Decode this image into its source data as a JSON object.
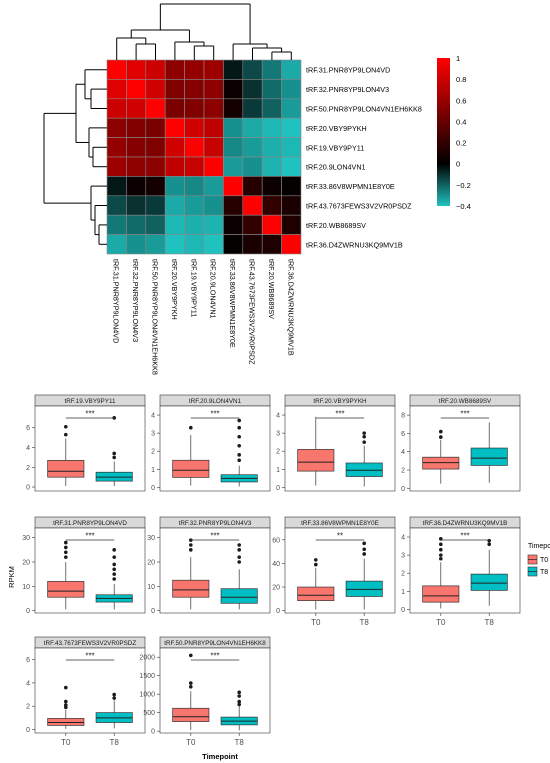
{
  "heatmap": {
    "rows": [
      "tRF.31.PNR8YP9LON4VD",
      "tRF.32.PNR8YP9LON4V3",
      "tRF.50.PNR8YP9LON4VN1EH6KK8",
      "tRF.20.VBY9PYKH",
      "tRF.19.VBY9PY11",
      "tRF.20.9LON4VN1",
      "tRF.33.86V8WPMN1E8Y0E",
      "tRF.43.7673FEWS3V2VR0PSDZ",
      "tRF.20.WB8689SV",
      "tRF.36.D4ZWRNU3KQ9MV1B"
    ],
    "cols": [
      "tRF.31.PNR8YP9LON4VD",
      "tRF.32.PNR8YP9LON4V3",
      "tRF.50.PNR8YP9LON4VN1EH6KK8",
      "tRF.20.VBY9PYKH",
      "tRF.19.VBY9PY11",
      "tRF.20.9LON4VN1",
      "tRF.33.86V8WPMN1E8Y0E",
      "tRF.43.7673FEWS3V2VR0PSDZ",
      "tRF.20.WB8689SV",
      "tRF.36.D4ZWRNU3KQ9MV1B"
    ],
    "legend_ticks": [
      "1",
      "0.8",
      "0.6",
      "0.4",
      "0.2",
      "0",
      "−0.2",
      "−0.4"
    ],
    "colors": {
      "high": "#ff0000",
      "mid": "#000000",
      "low": "#1fc2bf",
      "grid": "#8a8a8a"
    }
  },
  "chart_data": [
    {
      "type": "heatmap",
      "value_range": [
        -0.4,
        1
      ],
      "rows": [
        "tRF.31.PNR8YP9LON4VD",
        "tRF.32.PNR8YP9LON4V3",
        "tRF.50.PNR8YP9LON4VN1EH6KK8",
        "tRF.20.VBY9PYKH",
        "tRF.19.VBY9PY11",
        "tRF.20.9LON4VN1",
        "tRF.33.86V8WPMN1E8Y0E",
        "tRF.43.7673FEWS3V2VR0PSDZ",
        "tRF.20.WB8689SV",
        "tRF.36.D4ZWRNU3KQ9MV1B"
      ],
      "values": [
        [
          1.0,
          0.88,
          0.8,
          0.55,
          0.58,
          0.62,
          -0.05,
          -0.15,
          -0.25,
          -0.35
        ],
        [
          0.88,
          1.0,
          0.82,
          0.5,
          0.52,
          0.56,
          0.05,
          -0.1,
          -0.22,
          -0.3
        ],
        [
          0.8,
          0.82,
          1.0,
          0.48,
          0.5,
          0.55,
          0.08,
          -0.12,
          -0.2,
          -0.32
        ],
        [
          0.55,
          0.5,
          0.48,
          1.0,
          0.82,
          0.75,
          -0.3,
          -0.35,
          -0.38,
          -0.4
        ],
        [
          0.58,
          0.52,
          0.5,
          0.82,
          1.0,
          0.78,
          -0.28,
          -0.32,
          -0.36,
          -0.38
        ],
        [
          0.62,
          0.56,
          0.55,
          0.75,
          0.78,
          1.0,
          -0.32,
          -0.3,
          -0.37,
          -0.4
        ],
        [
          -0.05,
          0.05,
          0.08,
          -0.3,
          -0.28,
          -0.32,
          1.0,
          0.15,
          0.05,
          0.02
        ],
        [
          -0.15,
          -0.1,
          -0.12,
          -0.35,
          -0.32,
          -0.3,
          0.15,
          1.0,
          0.2,
          0.1
        ],
        [
          -0.25,
          -0.22,
          -0.2,
          -0.38,
          -0.36,
          -0.37,
          0.05,
          0.2,
          1.0,
          0.12
        ],
        [
          -0.35,
          -0.3,
          -0.32,
          -0.4,
          -0.38,
          -0.4,
          0.02,
          0.1,
          0.12,
          1.0
        ]
      ]
    },
    {
      "type": "box",
      "xlabel": "Timepoint",
      "ylabel": "RPKM",
      "categories": [
        "T0",
        "T8"
      ],
      "legend": {
        "title": "Timepoint",
        "entries": [
          "T0",
          "T8"
        ],
        "colors": [
          "#f8766d",
          "#00bfc4"
        ],
        "placement": "right"
      },
      "panels": [
        {
          "title": "tRF.19.VBY9PY11",
          "sig": "***",
          "yticks": [
            0,
            2,
            4,
            6
          ],
          "ylim": [
            -0.4,
            8.2
          ],
          "boxes": [
            {
              "group": "T0",
              "min": 0.1,
              "q1": 1.0,
              "median": 1.6,
              "q3": 2.7,
              "max": 4.9,
              "outliers": [
                5.3,
                6.1
              ]
            },
            {
              "group": "T8",
              "min": 0.1,
              "q1": 0.6,
              "median": 1.0,
              "q3": 1.5,
              "max": 2.6,
              "outliers": [
                3.0,
                3.4,
                7.0
              ]
            }
          ]
        },
        {
          "title": "tRF.20.9LON4VN1",
          "sig": "***",
          "yticks": [
            0,
            1,
            2,
            3,
            4
          ],
          "ylim": [
            -0.2,
            4.5
          ],
          "boxes": [
            {
              "group": "T0",
              "min": 0.1,
              "q1": 0.55,
              "median": 0.95,
              "q3": 1.5,
              "max": 2.9,
              "outliers": [
                3.3
              ]
            },
            {
              "group": "T8",
              "min": 0.05,
              "q1": 0.3,
              "median": 0.5,
              "q3": 0.7,
              "max": 1.2,
              "outliers": [
                1.5,
                1.8,
                2.3,
                2.8,
                3.3,
                3.7
              ]
            }
          ]
        },
        {
          "title": "tRF.20.VBY9PYKH",
          "sig": "***",
          "yticks": [
            0,
            1,
            2,
            3,
            4
          ],
          "ylim": [
            -0.2,
            4.5
          ],
          "boxes": [
            {
              "group": "T0",
              "min": 0.1,
              "q1": 0.9,
              "median": 1.4,
              "q3": 2.1,
              "max": 3.9,
              "outliers": []
            },
            {
              "group": "T8",
              "min": 0.05,
              "q1": 0.6,
              "median": 0.95,
              "q3": 1.35,
              "max": 2.3,
              "outliers": [
                2.5,
                2.8,
                3.0
              ]
            }
          ]
        },
        {
          "title": "tRF.20.WB8689SV",
          "sig": "***",
          "yticks": [
            0,
            2,
            4,
            6,
            8
          ],
          "ylim": [
            -0.3,
            9
          ],
          "boxes": [
            {
              "group": "T0",
              "min": 0.5,
              "q1": 2.1,
              "median": 2.8,
              "q3": 3.4,
              "max": 5.3,
              "outliers": [
                5.6,
                6.2
              ]
            },
            {
              "group": "T8",
              "min": 0.6,
              "q1": 2.5,
              "median": 3.3,
              "q3": 4.4,
              "max": 7.2,
              "outliers": []
            }
          ]
        },
        {
          "title": "tRF.31.PNR8YP9LON4VD",
          "sig": "***",
          "yticks": [
            0,
            10,
            20,
            30
          ],
          "ylim": [
            -1,
            34
          ],
          "boxes": [
            {
              "group": "T0",
              "min": 0.5,
              "q1": 5.5,
              "median": 8.0,
              "q3": 12.0,
              "max": 20.0,
              "outliers": [
                22,
                24,
                26,
                28
              ]
            },
            {
              "group": "T8",
              "min": 0.5,
              "q1": 3.5,
              "median": 5.0,
              "q3": 6.5,
              "max": 11.0,
              "outliers": [
                13,
                15,
                17,
                19,
                22,
                25
              ]
            }
          ]
        },
        {
          "title": "tRF.32.PNR8YP9LON4V3",
          "sig": "***",
          "yticks": [
            0,
            10,
            20,
            30
          ],
          "ylim": [
            -1,
            34
          ],
          "boxes": [
            {
              "group": "T0",
              "min": 0.5,
              "q1": 5.5,
              "median": 8.5,
              "q3": 12.5,
              "max": 22.0,
              "outliers": [
                25,
                27,
                29
              ]
            },
            {
              "group": "T8",
              "min": 0.5,
              "q1": 3.0,
              "median": 5.5,
              "q3": 9.0,
              "max": 17.0,
              "outliers": [
                20,
                22,
                25,
                27
              ]
            }
          ]
        },
        {
          "title": "tRF.33.86V8WPMN1E8Y0E",
          "sig": "**",
          "yticks": [
            0,
            20,
            40,
            60
          ],
          "ylim": [
            -2,
            70
          ],
          "boxes": [
            {
              "group": "T0",
              "min": 1,
              "q1": 8.5,
              "median": 13.0,
              "q3": 20.0,
              "max": 36.0,
              "outliers": [
                39,
                43
              ]
            },
            {
              "group": "T8",
              "min": 1,
              "q1": 12.0,
              "median": 18.0,
              "q3": 25.0,
              "max": 44.0,
              "outliers": [
                48,
                52,
                57
              ]
            }
          ]
        },
        {
          "title": "tRF.36.D4ZWRNU3KQ9MV1B",
          "sig": "***",
          "yticks": [
            0,
            1,
            2,
            3,
            4
          ],
          "ylim": [
            -0.2,
            4.5
          ],
          "boxes": [
            {
              "group": "T0",
              "min": 0.05,
              "q1": 0.4,
              "median": 0.75,
              "q3": 1.3,
              "max": 2.6,
              "outliers": [
                2.8,
                3.0,
                3.3,
                3.6,
                3.9
              ]
            },
            {
              "group": "T8",
              "min": 0.2,
              "q1": 1.05,
              "median": 1.45,
              "q3": 1.95,
              "max": 3.3,
              "outliers": [
                3.6,
                3.8
              ]
            }
          ]
        },
        {
          "title": "tRF.43.7673FEWS3V2VR0PSDZ",
          "sig": "***",
          "yticks": [
            0,
            2,
            4,
            6
          ],
          "ylim": [
            -0.3,
            7
          ],
          "boxes": [
            {
              "group": "T0",
              "min": 0.05,
              "q1": 0.35,
              "median": 0.6,
              "q3": 0.95,
              "max": 1.7,
              "outliers": [
                1.9,
                2.1,
                2.4,
                3.6
              ]
            },
            {
              "group": "T8",
              "min": 0.1,
              "q1": 0.6,
              "median": 1.0,
              "q3": 1.45,
              "max": 2.5,
              "outliers": [
                2.7,
                3.0
              ]
            }
          ]
        },
        {
          "title": "tRF.50.PNR8YP9LON4VN1EH6KK8",
          "sig": "***",
          "yticks": [
            0,
            500,
            1000,
            1500,
            2000
          ],
          "ylim": [
            -50,
            2250
          ],
          "boxes": [
            {
              "group": "T0",
              "min": 30,
              "q1": 260,
              "median": 390,
              "q3": 620,
              "max": 1080,
              "outliers": [
                1200,
                1300,
                2050
              ]
            },
            {
              "group": "T8",
              "min": 20,
              "q1": 170,
              "median": 270,
              "q3": 380,
              "max": 680,
              "outliers": [
                720,
                800,
                950,
                1050
              ]
            }
          ]
        }
      ]
    }
  ]
}
